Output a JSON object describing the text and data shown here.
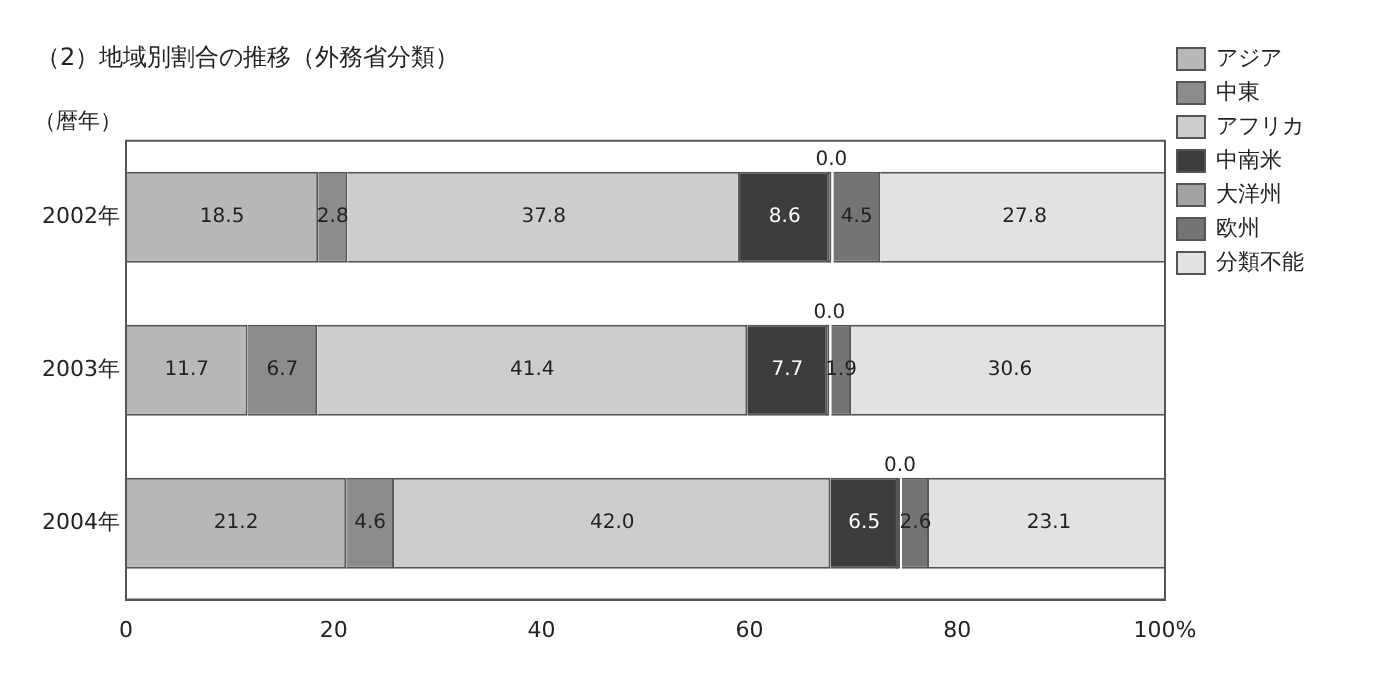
{
  "chart_data": {
    "type": "bar",
    "orientation": "horizontal",
    "stacked": true,
    "title": "（2）地域別割合の推移（外務省分類）",
    "ylabel": "（暦年）",
    "categories": [
      "2002年",
      "2003年",
      "2004年"
    ],
    "series": [
      {
        "name": "アジア",
        "color": "#b8b8b8",
        "values": [
          18.5,
          11.7,
          21.2
        ],
        "value_labels": [
          "18.5",
          "11.7",
          "21.2"
        ]
      },
      {
        "name": "中東",
        "color": "#8c8c8c",
        "values": [
          2.8,
          6.7,
          4.6
        ],
        "value_labels": [
          "2.8",
          "6.7",
          "4.6"
        ]
      },
      {
        "name": "アフリカ",
        "color": "#cdcdcd",
        "values": [
          37.8,
          41.4,
          42.0
        ],
        "value_labels": [
          "37.8",
          "41.4",
          "42.0"
        ]
      },
      {
        "name": "中南米",
        "color": "#3c3c3c",
        "values": [
          8.6,
          7.7,
          6.5
        ],
        "value_labels": [
          "8.6",
          "7.7",
          "6.5"
        ]
      },
      {
        "name": "大洋州",
        "color": "#a2a2a2",
        "values": [
          0.0,
          0.0,
          0.0
        ],
        "value_labels": [
          "0.0",
          "0.0",
          "0.0"
        ]
      },
      {
        "name": "欧州",
        "color": "#747474",
        "values": [
          4.5,
          1.9,
          2.6
        ],
        "value_labels": [
          "4.5",
          "1.9",
          "2.6"
        ]
      },
      {
        "name": "分類不能",
        "color": "#e2e2e2",
        "values": [
          27.8,
          30.6,
          23.1
        ],
        "value_labels": [
          "27.8",
          "30.6",
          "23.1"
        ]
      }
    ],
    "xlim": [
      0,
      100
    ],
    "xticks": [
      0,
      20,
      40,
      60,
      80,
      {
        "value": 100,
        "label": "100%"
      }
    ],
    "legend": "right",
    "grid": false
  }
}
